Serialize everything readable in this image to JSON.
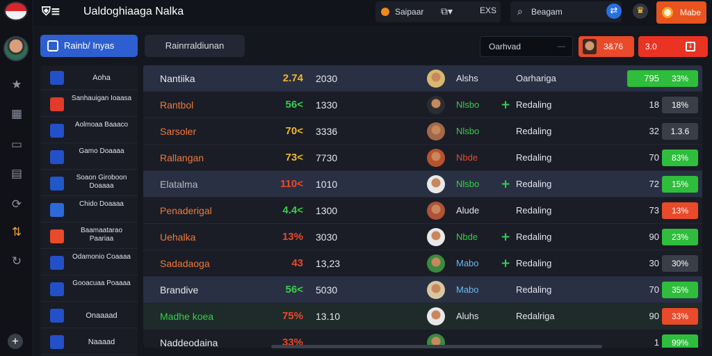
{
  "app": {
    "title": "Ualdoghiaaga Nalka"
  },
  "topbar": {
    "currency_label": "Saipaar",
    "toggle_label": "EXS",
    "search_label": "Beagam"
  },
  "cta": {
    "label": "Mabe"
  },
  "tabs": {
    "active": "Rainb/ Inyas",
    "inactive": "Rainrraldiunan"
  },
  "sort": {
    "label": "Oarhvad"
  },
  "stat_button": {
    "value": "3&76"
  },
  "value_button": {
    "value": "3.0"
  },
  "side_items": [
    {
      "name": "Aoha",
      "badge_color": "#2350c8"
    },
    {
      "name": "Sanhauigan Ioaasa",
      "badge_color": "#e23b2a"
    },
    {
      "name": "Aolmoaa Baaaco",
      "badge_color": "#2350c8"
    },
    {
      "name": "Gamo Doaaaa",
      "badge_color": "#2350c8"
    },
    {
      "name": "Soaon Giroboon Doaaaa",
      "badge_color": "#1f58c8"
    },
    {
      "name": "Chido Doaaaa",
      "badge_color": "#2c6ad8"
    },
    {
      "name": "Baamaatarao Paariaa",
      "badge_color": "#e84a2a"
    },
    {
      "name": "Odamonio Coaaaa",
      "badge_color": "#2350c8"
    },
    {
      "name": "Gooacuaa Poaaaa",
      "badge_color": "#2350c8"
    },
    {
      "name": "Onaaaad",
      "badge_color": "#2350c8"
    },
    {
      "name": "Naaaad",
      "badge_color": "#2350c8"
    }
  ],
  "rows": [
    {
      "name": "Nantiika",
      "name_color": "#e8eaf0",
      "pct": "2.74",
      "pct_color": "#f0b824",
      "num": "2030",
      "club": "Alshs",
      "club_color": "#e3e6ec",
      "plus": false,
      "status": "Oarhariga",
      "val": "795",
      "chip": "33%",
      "chip_color": "#2fbd3c",
      "face": "#d7b86e",
      "highlight": "hl",
      "chip_wide": true
    },
    {
      "name": "Rantbol",
      "name_color": "#ee7a3a",
      "pct": "56<",
      "pct_color": "#34d046",
      "num": "1330",
      "club": "Nlsbo",
      "club_color": "#34d046",
      "plus": true,
      "status": "Redaling",
      "val": "18",
      "chip": "18%",
      "chip_color": "#3a3e48",
      "face": "#2a2d32",
      "highlight": ""
    },
    {
      "name": "Sarsoler",
      "name_color": "#ee7a3a",
      "pct": "70<",
      "pct_color": "#f0b824",
      "num": "3336",
      "club": "Nlsbo",
      "club_color": "#34d046",
      "plus": false,
      "status": "Redaling",
      "val": "32",
      "chip": "1.3.6",
      "chip_color": "#3a3e48",
      "face": "#a06a4a",
      "highlight": ""
    },
    {
      "name": "Rallangan",
      "name_color": "#ee7a3a",
      "pct": "73<",
      "pct_color": "#f0b824",
      "num": "7730",
      "club": "Nbde",
      "club_color": "#e84a2a",
      "plus": false,
      "status": "Redaling",
      "val": "70",
      "chip": "83%",
      "chip_color": "#2fbd3c",
      "face": "#b8522e",
      "highlight": ""
    },
    {
      "name": "Elatalma",
      "name_color": "#b3b8c2",
      "pct": "110<",
      "pct_color": "#e84a2a",
      "num": "1010",
      "club": "Nlsbo",
      "club_color": "#34d046",
      "plus": true,
      "status": "Redaling",
      "val": "72",
      "chip": "15%",
      "chip_color": "#2fbd3c",
      "face": "#e8e8e8",
      "highlight": "hl"
    },
    {
      "name": "Penaderigal",
      "name_color": "#ee7a3a",
      "pct": "4.4<",
      "pct_color": "#34d046",
      "num": "1300",
      "club": "Alude",
      "club_color": "#e3e6ec",
      "plus": false,
      "status": "Redaling",
      "val": "73",
      "chip": "13%",
      "chip_color": "#e84a2a",
      "face": "#b0523a",
      "highlight": ""
    },
    {
      "name": "Uehalka",
      "name_color": "#ee7a3a",
      "pct": "13%",
      "pct_color": "#e84a2a",
      "num": "3030",
      "club": "Nbde",
      "club_color": "#34d046",
      "plus": true,
      "status": "Redaling",
      "val": "90",
      "chip": "23%",
      "chip_color": "#2fbd3c",
      "face": "#e8e8e8",
      "highlight": ""
    },
    {
      "name": "Sadadaoga",
      "name_color": "#ee7a3a",
      "pct": "43",
      "pct_color": "#e84a2a",
      "num": "13,23",
      "club": "Mabo",
      "club_color": "#6ab7f0",
      "plus": true,
      "status": "Redaling",
      "val": "30",
      "chip": "30%",
      "chip_color": "#3a3e48",
      "face": "#3b8a40",
      "highlight": ""
    },
    {
      "name": "Brandive",
      "name_color": "#e8eaf0",
      "pct": "56<",
      "pct_color": "#34d046",
      "num": "5030",
      "club": "Mabo",
      "club_color": "#6ab7f0",
      "plus": false,
      "status": "Redaling",
      "val": "70",
      "chip": "35%",
      "chip_color": "#2fbd3c",
      "face": "#d7c8a0",
      "highlight": "hl"
    },
    {
      "name": "Madhe koea",
      "name_color": "#34d046",
      "pct": "75%",
      "pct_color": "#e84a2a",
      "num": "13.10",
      "club": "Aluhs",
      "club_color": "#e3e6ec",
      "plus": false,
      "status": "Redalriga",
      "val": "90",
      "chip": "33%",
      "chip_color": "#e84a2a",
      "face": "#e8e8e8",
      "highlight": "hl2"
    },
    {
      "name": "Naddeodaina",
      "name_color": "#e8eaf0",
      "pct": "33%",
      "pct_color": "#e84a2a",
      "num": "",
      "club": "",
      "club_color": "#e3e6ec",
      "plus": false,
      "status": "",
      "val": "1",
      "chip": "99%",
      "chip_color": "#2fbd3c",
      "face": "#3b8a40",
      "highlight": ""
    }
  ]
}
